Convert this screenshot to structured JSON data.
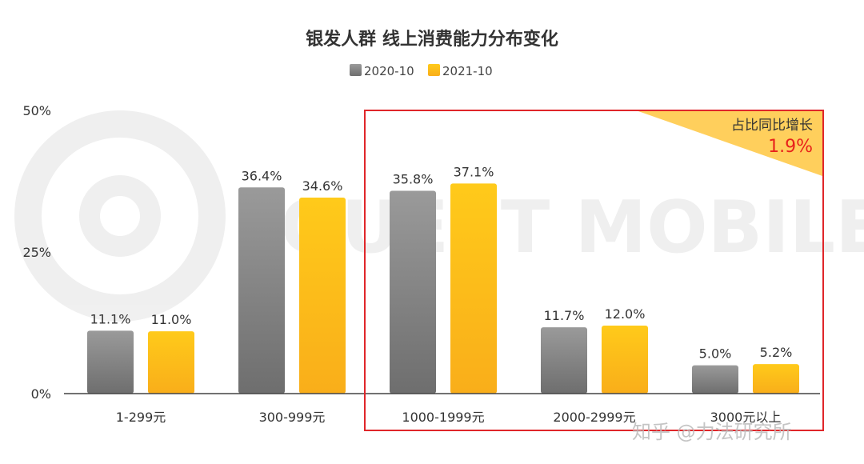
{
  "chart_data": {
    "type": "bar",
    "title": "银发人群 线上消费能力分布变化",
    "categories": [
      "1-299元",
      "300-999元",
      "1000-1999元",
      "2000-2999元",
      "3000元以上"
    ],
    "series": [
      {
        "name": "2020-10",
        "values": [
          11.1,
          36.4,
          35.8,
          11.7,
          5.0
        ],
        "labels": [
          "11.1%",
          "36.4%",
          "35.8%",
          "11.7%",
          "5.0%"
        ],
        "color": "#8a8a8a"
      },
      {
        "name": "2021-10",
        "values": [
          11.0,
          34.6,
          37.1,
          12.0,
          5.2
        ],
        "labels": [
          "11.0%",
          "34.6%",
          "37.1%",
          "12.0%",
          "5.2%"
        ],
        "color": "#ffc000"
      }
    ],
    "yticks": [
      "0%",
      "25%",
      "50%"
    ],
    "ylim": [
      0,
      50
    ],
    "grid": false,
    "legend": "top",
    "annotation": {
      "label": "占比同比增长",
      "value": "1.9%",
      "value_color": "#e8221b",
      "highlight_color": "#e8221b"
    }
  },
  "watermark": {
    "text": "知乎 @力法研究所",
    "logo": "QUEST MOBILE"
  }
}
